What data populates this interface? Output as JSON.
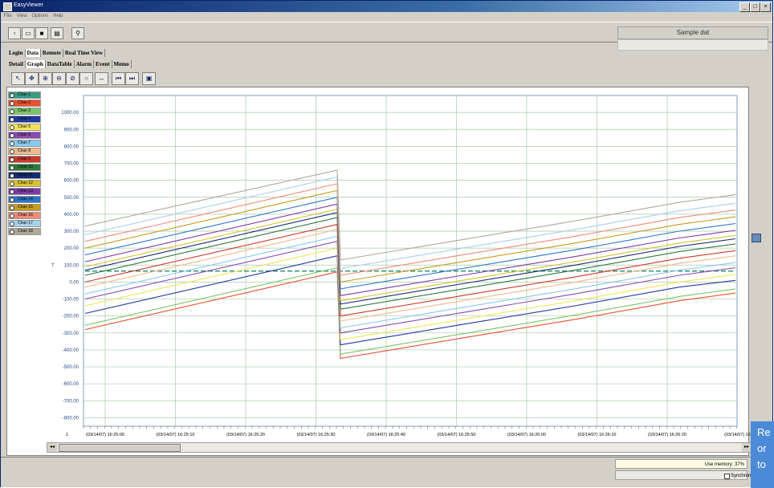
{
  "window": {
    "title": "EasyViewer"
  },
  "menu": [
    "File",
    "View",
    "Options",
    "Help"
  ],
  "toolbar_icons": [
    "new-icon",
    "open-icon",
    "save-icon",
    "print-icon",
    "find-icon"
  ],
  "sample_box": {
    "label": "Sample dat"
  },
  "tabs_primary": [
    {
      "label": "Login",
      "active": false
    },
    {
      "label": "Data",
      "active": true
    },
    {
      "label": "Remote",
      "active": false
    },
    {
      "label": "Real Time View",
      "active": false
    }
  ],
  "tabs_secondary": [
    {
      "label": "Detail",
      "active": false
    },
    {
      "label": "Graph",
      "active": true
    },
    {
      "label": "DataTable",
      "active": false
    },
    {
      "label": "Alarm",
      "active": false
    },
    {
      "label": "Event",
      "active": false
    },
    {
      "label": "Memo",
      "active": false
    }
  ],
  "graph_tools": [
    "pointer-icon",
    "move-icon",
    "zoom-in-icon",
    "zoom-x-icon",
    "zoom-y-icon",
    "zoom-out-icon",
    "fit-icon",
    "first-icon",
    "last-icon",
    "print-graph-icon"
  ],
  "legend": [
    {
      "label": "Chan 1",
      "color": "#3a9a82"
    },
    {
      "label": "Chan 2",
      "color": "#e8502e"
    },
    {
      "label": "Chan 3",
      "color": "#7ac46c"
    },
    {
      "label": "Chan 4",
      "color": "#1f3a9e"
    },
    {
      "label": "Chan 5",
      "color": "#f4e35a"
    },
    {
      "label": "Chan 6",
      "color": "#8a4ab0"
    },
    {
      "label": "Chan 7",
      "color": "#88c8ea"
    },
    {
      "label": "Chan 8",
      "color": "#f2b98a"
    },
    {
      "label": "Chan 9",
      "color": "#cc3a2a"
    },
    {
      "label": "Chan 10",
      "color": "#2e7a3a"
    },
    {
      "label": "Chan 11",
      "color": "#162a6e"
    },
    {
      "label": "Chan 12",
      "color": "#d8c230"
    },
    {
      "label": "Chan 13",
      "color": "#7e3aa8"
    },
    {
      "label": "Chan 14",
      "color": "#2a76c8"
    },
    {
      "label": "Chan 15",
      "color": "#c89a20"
    },
    {
      "label": "Chan 16",
      "color": "#f08a7a"
    },
    {
      "label": "Chan 17",
      "color": "#a8d0ea"
    },
    {
      "label": "Chan 18",
      "color": "#b0a898"
    }
  ],
  "chart_data": {
    "type": "line",
    "ylim": [
      -850,
      1100
    ],
    "yticks": [
      "1000.00",
      "900.00",
      "800.00",
      "700.00",
      "600.00",
      "500.00",
      "400.00",
      "300.00",
      "200.00",
      "100.00",
      "0.00",
      "-100.00",
      "-200.00",
      "-300.00",
      "-400.00",
      "-500.00",
      "-600.00",
      "-700.00",
      "-800.00"
    ],
    "ytick_values": [
      1000,
      900,
      800,
      700,
      600,
      500,
      400,
      300,
      200,
      100,
      0,
      -100,
      -200,
      -300,
      -400,
      -500,
      -600,
      -700,
      -800
    ],
    "xtick_labels": [
      "(03/14/07) 16:25:00",
      "(03/14/07) 16:25:10",
      "(03/14/07) 16:25:20",
      "(03/14/07) 16:25:30",
      "(03/14/07) 16:25:40",
      "(03/14/07) 16:25:50",
      "(03/14/07) 16:26:00",
      "(03/14/07) 16:26:10",
      "(03/14/07) 16:26:20",
      "(03/14/07) 16"
    ],
    "xstart_label": "1",
    "series": [
      {
        "label": "Chan 1",
        "color": "#3a9a82",
        "values": [
          65,
          65,
          65,
          65,
          65,
          65,
          65
        ]
      },
      {
        "label": "Chan 2",
        "color": "#e8502e",
        "values": [
          -280,
          60,
          -450,
          -330,
          -220,
          -110,
          -65
        ]
      },
      {
        "label": "Chan 3",
        "color": "#7ac46c",
        "values": [
          -255,
          85,
          -425,
          -305,
          -195,
          -85,
          -40
        ]
      },
      {
        "label": "Chan 4",
        "color": "#1f3a9e",
        "values": [
          -185,
          155,
          -370,
          -250,
          -140,
          -30,
          10
        ]
      },
      {
        "label": "Chan 5",
        "color": "#f4e35a",
        "values": [
          -140,
          200,
          -340,
          -220,
          -110,
          0,
          45
        ]
      },
      {
        "label": "Chan 6",
        "color": "#8a4ab0",
        "values": [
          -100,
          240,
          -300,
          -180,
          -70,
          40,
          85
        ]
      },
      {
        "label": "Chan 7",
        "color": "#88c8ea",
        "values": [
          -70,
          270,
          -270,
          -150,
          -40,
          70,
          115
        ]
      },
      {
        "label": "Chan 8",
        "color": "#f2b98a",
        "values": [
          -30,
          310,
          -230,
          -110,
          0,
          110,
          155
        ]
      },
      {
        "label": "Chan 9",
        "color": "#cc3a2a",
        "values": [
          0,
          340,
          -200,
          -80,
          30,
          140,
          185
        ]
      },
      {
        "label": "Chan 10",
        "color": "#2e7a3a",
        "values": [
          40,
          380,
          -160,
          -40,
          70,
          180,
          225
        ]
      },
      {
        "label": "Chan 11",
        "color": "#162a6e",
        "values": [
          70,
          410,
          -130,
          -10,
          100,
          210,
          255
        ]
      },
      {
        "label": "Chan 12",
        "color": "#d8c230",
        "values": [
          90,
          430,
          -110,
          10,
          120,
          230,
          275
        ]
      },
      {
        "label": "Chan 13",
        "color": "#7e3aa8",
        "values": [
          120,
          460,
          -80,
          40,
          150,
          260,
          305
        ]
      },
      {
        "label": "Chan 14",
        "color": "#2a76c8",
        "values": [
          160,
          500,
          -40,
          80,
          190,
          300,
          345
        ]
      },
      {
        "label": "Chan 15",
        "color": "#c89a20",
        "values": [
          200,
          540,
          0,
          120,
          230,
          340,
          385
        ]
      },
      {
        "label": "Chan 16",
        "color": "#f08a7a",
        "values": [
          240,
          580,
          40,
          160,
          270,
          380,
          425
        ]
      },
      {
        "label": "Chan 17",
        "color": "#a8d0ea",
        "values": [
          280,
          620,
          80,
          200,
          310,
          420,
          465
        ]
      },
      {
        "label": "Chan 18",
        "color": "#b0a898",
        "values": [
          330,
          660,
          130,
          250,
          360,
          470,
          515
        ]
      }
    ]
  },
  "status": {
    "use_memory": "Use memory: 37%",
    "sync_label": "Synchron"
  },
  "overlay_lines": [
    "Re",
    "or",
    "to"
  ]
}
